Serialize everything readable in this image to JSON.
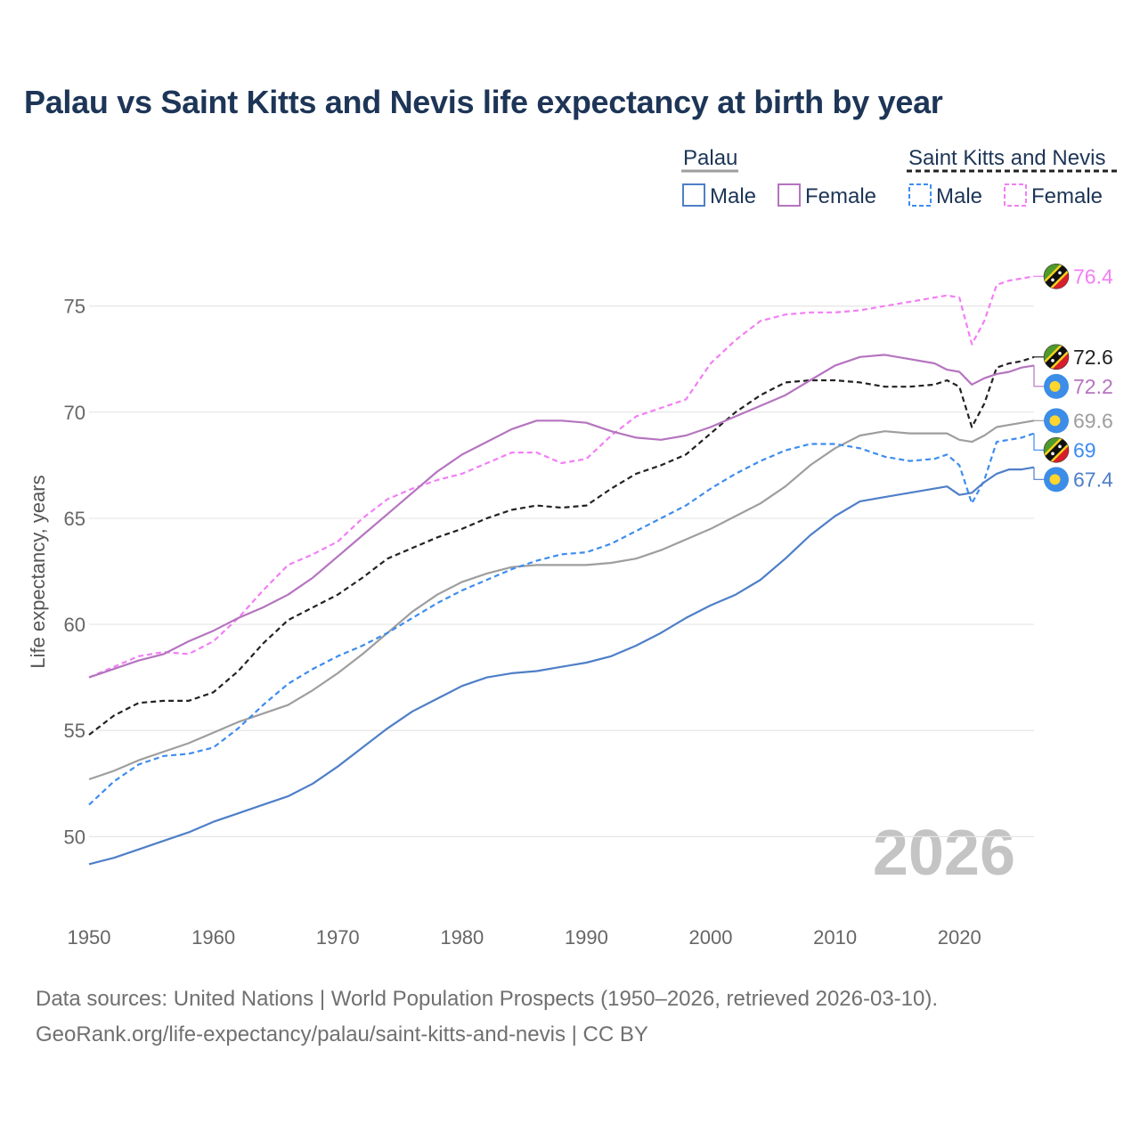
{
  "chart_data": {
    "type": "line",
    "title": "Palau vs Saint Kitts and Nevis life expectancy at birth by year",
    "ylabel": "Life expectancy, years",
    "xlabel": "",
    "xlim": [
      1950,
      2026
    ],
    "ylim": [
      46.7,
      78.3
    ],
    "x_ticks": [
      1950,
      1960,
      1970,
      1980,
      1990,
      2000,
      2010,
      2020
    ],
    "y_ticks": [
      50,
      55,
      60,
      65,
      70,
      75
    ],
    "grid": "horizontal",
    "year_watermark": "2026",
    "legend": {
      "placement": "top-right",
      "groups": [
        {
          "name": "Palau",
          "line_color": "#9e9e9e",
          "items": [
            "Male",
            "Female"
          ]
        },
        {
          "name": "Saint Kitts and Nevis",
          "line_color": "#222222",
          "items": [
            "Male",
            "Female"
          ]
        }
      ]
    },
    "colors": {
      "palau_male": "#4e7fc8",
      "palau_female": "#b574bf",
      "palau_total": "#9e9e9e",
      "skn_male": "#3d8cf0",
      "skn_female": "#f27ef5",
      "skn_total": "#222222",
      "title": "#1d3557",
      "watermark": "#c4c4c4"
    },
    "series": [
      {
        "id": "skn_female",
        "name": "Saint Kitts and Nevis Female",
        "style": "dashed",
        "color": "#f27ef5",
        "end_label": "76.4",
        "flag": "saint-kitts-and-nevis",
        "points": [
          [
            1950,
            57.5
          ],
          [
            1952,
            58.0
          ],
          [
            1954,
            58.5
          ],
          [
            1956,
            58.7
          ],
          [
            1958,
            58.6
          ],
          [
            1960,
            59.2
          ],
          [
            1962,
            60.3
          ],
          [
            1964,
            61.6
          ],
          [
            1966,
            62.8
          ],
          [
            1968,
            63.3
          ],
          [
            1970,
            63.9
          ],
          [
            1972,
            65.0
          ],
          [
            1974,
            65.9
          ],
          [
            1976,
            66.4
          ],
          [
            1978,
            66.8
          ],
          [
            1980,
            67.1
          ],
          [
            1982,
            67.6
          ],
          [
            1984,
            68.1
          ],
          [
            1986,
            68.1
          ],
          [
            1988,
            67.6
          ],
          [
            1990,
            67.8
          ],
          [
            1992,
            68.9
          ],
          [
            1994,
            69.8
          ],
          [
            1996,
            70.2
          ],
          [
            1998,
            70.6
          ],
          [
            2000,
            72.3
          ],
          [
            2002,
            73.4
          ],
          [
            2004,
            74.3
          ],
          [
            2006,
            74.6
          ],
          [
            2008,
            74.7
          ],
          [
            2010,
            74.7
          ],
          [
            2012,
            74.8
          ],
          [
            2014,
            75.0
          ],
          [
            2016,
            75.2
          ],
          [
            2018,
            75.4
          ],
          [
            2019,
            75.5
          ],
          [
            2020,
            75.4
          ],
          [
            2021,
            73.2
          ],
          [
            2022,
            74.3
          ],
          [
            2023,
            76.0
          ],
          [
            2024,
            76.2
          ],
          [
            2025,
            76.3
          ],
          [
            2026,
            76.4
          ]
        ]
      },
      {
        "id": "skn_total",
        "name": "Saint Kitts and Nevis",
        "style": "dashed",
        "color": "#222222",
        "end_label": "72.6",
        "flag": "saint-kitts-and-nevis",
        "points": [
          [
            1950,
            54.8
          ],
          [
            1952,
            55.7
          ],
          [
            1954,
            56.3
          ],
          [
            1956,
            56.4
          ],
          [
            1958,
            56.4
          ],
          [
            1960,
            56.8
          ],
          [
            1962,
            57.8
          ],
          [
            1964,
            59.1
          ],
          [
            1966,
            60.2
          ],
          [
            1968,
            60.8
          ],
          [
            1970,
            61.4
          ],
          [
            1972,
            62.2
          ],
          [
            1974,
            63.1
          ],
          [
            1976,
            63.6
          ],
          [
            1978,
            64.1
          ],
          [
            1980,
            64.5
          ],
          [
            1982,
            65.0
          ],
          [
            1984,
            65.4
          ],
          [
            1986,
            65.6
          ],
          [
            1988,
            65.5
          ],
          [
            1990,
            65.6
          ],
          [
            1992,
            66.4
          ],
          [
            1994,
            67.1
          ],
          [
            1996,
            67.5
          ],
          [
            1998,
            68.0
          ],
          [
            2000,
            69.0
          ],
          [
            2002,
            70.0
          ],
          [
            2004,
            70.8
          ],
          [
            2006,
            71.4
          ],
          [
            2008,
            71.5
          ],
          [
            2010,
            71.5
          ],
          [
            2012,
            71.4
          ],
          [
            2014,
            71.2
          ],
          [
            2016,
            71.2
          ],
          [
            2018,
            71.3
          ],
          [
            2019,
            71.5
          ],
          [
            2020,
            71.2
          ],
          [
            2021,
            69.3
          ],
          [
            2022,
            70.4
          ],
          [
            2023,
            72.1
          ],
          [
            2024,
            72.3
          ],
          [
            2025,
            72.4
          ],
          [
            2026,
            72.6
          ]
        ]
      },
      {
        "id": "palau_female",
        "name": "Palau Female",
        "style": "solid",
        "color": "#b574bf",
        "end_label": "72.2",
        "flag": "palau",
        "points": [
          [
            1950,
            57.5
          ],
          [
            1952,
            57.9
          ],
          [
            1954,
            58.3
          ],
          [
            1956,
            58.6
          ],
          [
            1958,
            59.2
          ],
          [
            1960,
            59.7
          ],
          [
            1962,
            60.3
          ],
          [
            1964,
            60.8
          ],
          [
            1966,
            61.4
          ],
          [
            1968,
            62.2
          ],
          [
            1970,
            63.2
          ],
          [
            1972,
            64.2
          ],
          [
            1974,
            65.2
          ],
          [
            1976,
            66.2
          ],
          [
            1978,
            67.2
          ],
          [
            1980,
            68.0
          ],
          [
            1982,
            68.6
          ],
          [
            1984,
            69.2
          ],
          [
            1986,
            69.6
          ],
          [
            1988,
            69.6
          ],
          [
            1990,
            69.5
          ],
          [
            1992,
            69.1
          ],
          [
            1994,
            68.8
          ],
          [
            1996,
            68.7
          ],
          [
            1998,
            68.9
          ],
          [
            2000,
            69.3
          ],
          [
            2002,
            69.8
          ],
          [
            2004,
            70.3
          ],
          [
            2006,
            70.8
          ],
          [
            2008,
            71.5
          ],
          [
            2010,
            72.2
          ],
          [
            2012,
            72.6
          ],
          [
            2014,
            72.7
          ],
          [
            2016,
            72.5
          ],
          [
            2018,
            72.3
          ],
          [
            2019,
            72.0
          ],
          [
            2020,
            71.9
          ],
          [
            2021,
            71.3
          ],
          [
            2022,
            71.6
          ],
          [
            2023,
            71.8
          ],
          [
            2024,
            71.9
          ],
          [
            2025,
            72.1
          ],
          [
            2026,
            72.2
          ]
        ]
      },
      {
        "id": "palau_total",
        "name": "Palau",
        "style": "solid",
        "color": "#9e9e9e",
        "end_label": "69.6",
        "flag": "palau",
        "points": [
          [
            1950,
            52.7
          ],
          [
            1952,
            53.1
          ],
          [
            1954,
            53.6
          ],
          [
            1956,
            54.0
          ],
          [
            1958,
            54.4
          ],
          [
            1960,
            54.9
          ],
          [
            1962,
            55.4
          ],
          [
            1964,
            55.8
          ],
          [
            1966,
            56.2
          ],
          [
            1968,
            56.9
          ],
          [
            1970,
            57.7
          ],
          [
            1972,
            58.6
          ],
          [
            1974,
            59.6
          ],
          [
            1976,
            60.6
          ],
          [
            1978,
            61.4
          ],
          [
            1980,
            62.0
          ],
          [
            1982,
            62.4
          ],
          [
            1984,
            62.7
          ],
          [
            1986,
            62.8
          ],
          [
            1988,
            62.8
          ],
          [
            1990,
            62.8
          ],
          [
            1992,
            62.9
          ],
          [
            1994,
            63.1
          ],
          [
            1996,
            63.5
          ],
          [
            1998,
            64.0
          ],
          [
            2000,
            64.5
          ],
          [
            2002,
            65.1
          ],
          [
            2004,
            65.7
          ],
          [
            2006,
            66.5
          ],
          [
            2008,
            67.5
          ],
          [
            2010,
            68.3
          ],
          [
            2012,
            68.9
          ],
          [
            2014,
            69.1
          ],
          [
            2016,
            69.0
          ],
          [
            2018,
            69.0
          ],
          [
            2019,
            69.0
          ],
          [
            2020,
            68.7
          ],
          [
            2021,
            68.6
          ],
          [
            2022,
            68.9
          ],
          [
            2023,
            69.3
          ],
          [
            2024,
            69.4
          ],
          [
            2025,
            69.5
          ],
          [
            2026,
            69.6
          ]
        ]
      },
      {
        "id": "skn_male",
        "name": "Saint Kitts and Nevis Male",
        "style": "dashed",
        "color": "#3d8cf0",
        "end_label": "69",
        "flag": "saint-kitts-and-nevis",
        "points": [
          [
            1950,
            51.5
          ],
          [
            1952,
            52.6
          ],
          [
            1954,
            53.4
          ],
          [
            1956,
            53.8
          ],
          [
            1958,
            53.9
          ],
          [
            1960,
            54.2
          ],
          [
            1962,
            55.1
          ],
          [
            1964,
            56.2
          ],
          [
            1966,
            57.2
          ],
          [
            1968,
            57.9
          ],
          [
            1970,
            58.5
          ],
          [
            1972,
            59.0
          ],
          [
            1974,
            59.6
          ],
          [
            1976,
            60.3
          ],
          [
            1978,
            61.0
          ],
          [
            1980,
            61.6
          ],
          [
            1982,
            62.1
          ],
          [
            1984,
            62.6
          ],
          [
            1986,
            63.0
          ],
          [
            1988,
            63.3
          ],
          [
            1990,
            63.4
          ],
          [
            1992,
            63.8
          ],
          [
            1994,
            64.4
          ],
          [
            1996,
            65.0
          ],
          [
            1998,
            65.6
          ],
          [
            2000,
            66.4
          ],
          [
            2002,
            67.1
          ],
          [
            2004,
            67.7
          ],
          [
            2006,
            68.2
          ],
          [
            2008,
            68.5
          ],
          [
            2010,
            68.5
          ],
          [
            2012,
            68.3
          ],
          [
            2014,
            67.9
          ],
          [
            2016,
            67.7
          ],
          [
            2018,
            67.8
          ],
          [
            2019,
            68.0
          ],
          [
            2020,
            67.5
          ],
          [
            2021,
            65.7
          ],
          [
            2022,
            66.8
          ],
          [
            2023,
            68.6
          ],
          [
            2024,
            68.7
          ],
          [
            2025,
            68.8
          ],
          [
            2026,
            69.0
          ]
        ]
      },
      {
        "id": "palau_male",
        "name": "Palau Male",
        "style": "solid",
        "color": "#4e7fc8",
        "end_label": "67.4",
        "flag": "palau",
        "points": [
          [
            1950,
            48.7
          ],
          [
            1952,
            49.0
          ],
          [
            1954,
            49.4
          ],
          [
            1956,
            49.8
          ],
          [
            1958,
            50.2
          ],
          [
            1960,
            50.7
          ],
          [
            1962,
            51.1
          ],
          [
            1964,
            51.5
          ],
          [
            1966,
            51.9
          ],
          [
            1968,
            52.5
          ],
          [
            1970,
            53.3
          ],
          [
            1972,
            54.2
          ],
          [
            1974,
            55.1
          ],
          [
            1976,
            55.9
          ],
          [
            1978,
            56.5
          ],
          [
            1980,
            57.1
          ],
          [
            1982,
            57.5
          ],
          [
            1984,
            57.7
          ],
          [
            1986,
            57.8
          ],
          [
            1988,
            58.0
          ],
          [
            1990,
            58.2
          ],
          [
            1992,
            58.5
          ],
          [
            1994,
            59.0
          ],
          [
            1996,
            59.6
          ],
          [
            1998,
            60.3
          ],
          [
            2000,
            60.9
          ],
          [
            2002,
            61.4
          ],
          [
            2004,
            62.1
          ],
          [
            2006,
            63.1
          ],
          [
            2008,
            64.2
          ],
          [
            2010,
            65.1
          ],
          [
            2012,
            65.8
          ],
          [
            2014,
            66.0
          ],
          [
            2016,
            66.2
          ],
          [
            2018,
            66.4
          ],
          [
            2019,
            66.5
          ],
          [
            2020,
            66.1
          ],
          [
            2021,
            66.2
          ],
          [
            2022,
            66.7
          ],
          [
            2023,
            67.1
          ],
          [
            2024,
            67.3
          ],
          [
            2025,
            67.3
          ],
          [
            2026,
            67.4
          ]
        ]
      }
    ]
  },
  "source": {
    "line1": "Data sources: United Nations | World Population Prospects (1950–2026, retrieved 2026-03-10).",
    "line2": "GeoRank.org/life-expectancy/palau/saint-kitts-and-nevis | CC BY"
  }
}
